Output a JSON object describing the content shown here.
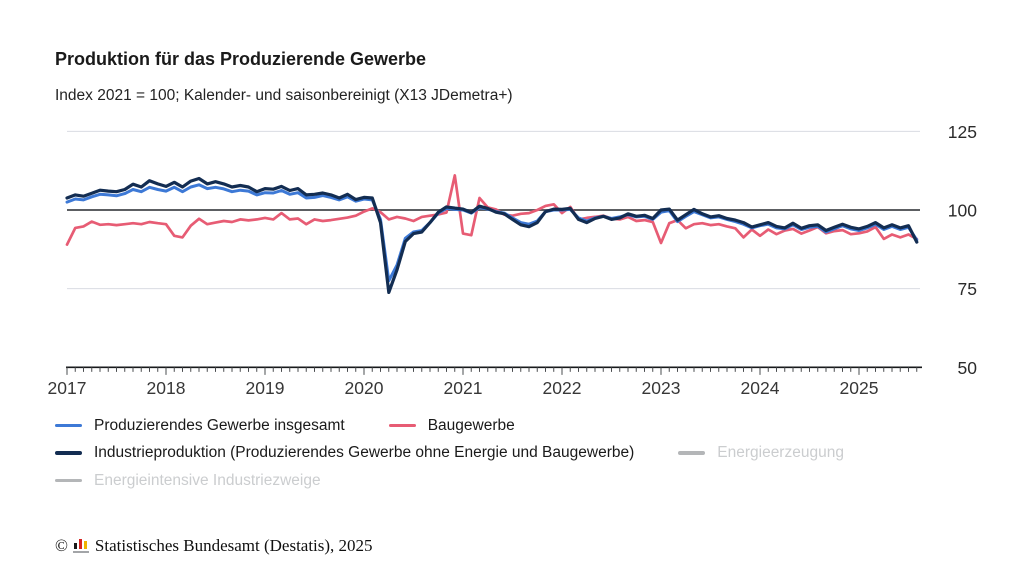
{
  "chart_data": {
    "type": "line",
    "title": "Produktion für das Produzierende Gewerbe",
    "subtitle": "Index 2021 = 100; Kalender- und saisonbereinigt (X13 JDemetra+)",
    "frequency": "monthly",
    "x_start": "2017-01",
    "x_end": "2025-08",
    "x_tick_labels": [
      "2017",
      "2018",
      "2019",
      "2020",
      "2021",
      "2022",
      "2023",
      "2024",
      "2025"
    ],
    "y_ticks": [
      125,
      100,
      75,
      50
    ],
    "ylim": [
      50,
      125
    ],
    "y_axis_side": "right",
    "reference_line_y": 100,
    "grid": "horizontal",
    "legend_position": "bottom-left",
    "series": [
      {
        "name": "Produzierendes Gewerbe insgesamt",
        "color": "#3d79d6",
        "visible": true,
        "values": [
          102.5,
          103.5,
          103.2,
          104.2,
          105,
          104.8,
          104.5,
          105.2,
          106.5,
          105.8,
          107.2,
          106.5,
          106,
          107.2,
          105.8,
          107.3,
          108,
          106.8,
          107.2,
          106.7,
          105.8,
          106.3,
          106,
          104.8,
          105.5,
          105.4,
          106.2,
          105,
          105.5,
          103.8,
          104,
          104.6,
          104,
          103.2,
          104.2,
          102.8,
          103.5,
          103.2,
          97,
          77.5,
          82.5,
          91,
          93,
          93.5,
          96,
          99,
          100.5,
          100.2,
          100,
          99,
          100.8,
          100.3,
          99.5,
          99,
          97.5,
          96,
          95.5,
          96.5,
          99.5,
          100,
          100,
          100.2,
          97.5,
          96.5,
          97.5,
          98,
          97.3,
          97.8,
          98.5,
          97.8,
          98,
          97,
          99.3,
          99.8,
          96.3,
          98,
          99.5,
          98.5,
          97.5,
          97.8,
          97,
          96.3,
          95.5,
          94.3,
          95,
          95.5,
          94.3,
          94,
          95.3,
          93.8,
          94.5,
          94.8,
          93,
          94,
          95,
          94,
          93.5,
          94.3,
          95.5,
          93.8,
          94.8,
          93.8,
          94.5,
          90.5
        ]
      },
      {
        "name": "Baugewerbe",
        "color": "#e75c74",
        "visible": true,
        "values": [
          89,
          94.3,
          94.8,
          96.3,
          95.3,
          95.5,
          95.2,
          95.5,
          95.8,
          95.5,
          96.2,
          95.8,
          95.5,
          91.8,
          91.3,
          95,
          97.2,
          95.5,
          96,
          96.5,
          96.2,
          97,
          96.7,
          97,
          97.5,
          97,
          99,
          97,
          97.3,
          95.5,
          97,
          96.5,
          96.8,
          97.2,
          97.6,
          98.2,
          99.5,
          100.5,
          99.3,
          97,
          97.8,
          97.3,
          96.5,
          97.8,
          98.2,
          98.6,
          99.2,
          111,
          92.5,
          92,
          103.8,
          100.8,
          100.2,
          98.5,
          98.2,
          98.8,
          99,
          100,
          101.3,
          101.8,
          99,
          101,
          97,
          97.5,
          97.8,
          98.2,
          97.3,
          97,
          97.8,
          96.5,
          96.8,
          96.2,
          89.5,
          95.8,
          96.8,
          94.2,
          95.5,
          95.8,
          95.2,
          95.5,
          94.8,
          94.2,
          91.3,
          93.8,
          91.8,
          93.8,
          92.3,
          93.5,
          94,
          92.5,
          93.5,
          94.6,
          92.6,
          93.3,
          93.6,
          92.3,
          92.6,
          93.2,
          94.6,
          90.8,
          92.2,
          91.3,
          92.2,
          90.8
        ]
      },
      {
        "name": "Industrieproduktion (Produzierendes Gewerbe ohne Energie und Baugewerbe)",
        "color": "#132d52",
        "visible": true,
        "values": [
          103.8,
          104.8,
          104.4,
          105.3,
          106.3,
          106,
          105.8,
          106.5,
          108.2,
          107.3,
          109.3,
          108.3,
          107.5,
          108.8,
          107.3,
          109.2,
          110,
          108.3,
          109,
          108.3,
          107.3,
          107.8,
          107.3,
          105.8,
          106.8,
          106.6,
          107.5,
          106.2,
          106.8,
          104.8,
          105,
          105.4,
          104.8,
          103.8,
          105,
          103.3,
          104,
          103.8,
          96,
          73.8,
          81,
          90,
          92.5,
          93,
          96,
          99.3,
          101,
          100.6,
          100.3,
          99.2,
          101.2,
          100.5,
          99.3,
          98.8,
          97,
          95.3,
          94.7,
          96,
          99.5,
          100.3,
          100.2,
          100.5,
          97,
          96,
          97.3,
          98,
          97,
          97.5,
          98.8,
          98,
          98.3,
          97.3,
          100,
          100.3,
          96.8,
          98.5,
          100.2,
          98.8,
          97.8,
          98.2,
          97.3,
          96.8,
          96,
          94.6,
          95.3,
          96,
          94.8,
          94.3,
          95.8,
          94.2,
          95,
          95.3,
          93.5,
          94.5,
          95.5,
          94.5,
          94,
          94.8,
          96,
          94.3,
          95.3,
          94.3,
          95,
          89.8
        ]
      },
      {
        "name": "Energieerzeugung",
        "color": "#b4b6b8",
        "visible": false,
        "values": []
      },
      {
        "name": "Energieintensive Industriezweige",
        "color": "#b4b6b8",
        "visible": false,
        "values": []
      }
    ]
  },
  "footer": {
    "copyright_symbol": "©",
    "logo_icon": "destatis-bars-icon",
    "source": "Statistisches Bundesamt (Destatis), 2025"
  }
}
